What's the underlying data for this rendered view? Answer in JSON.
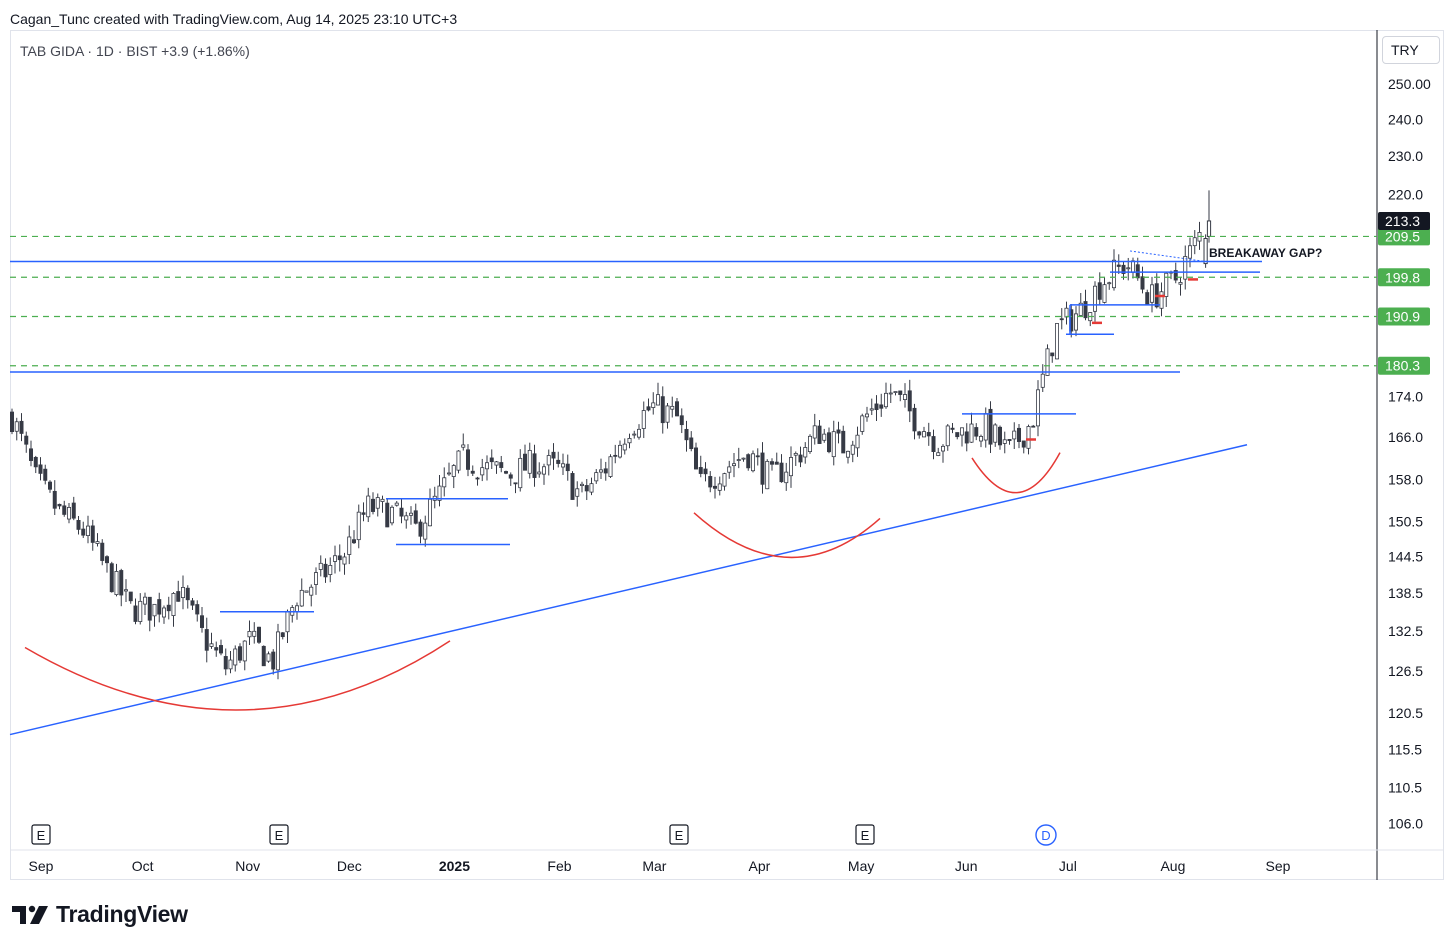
{
  "header": {
    "credit": "Cagan_Tunc created with TradingView.com, Aug 14, 2025 23:10 UTC+3",
    "legend": "TAB GIDA · 1D · BIST  +3.9 (+1.86%)",
    "currency": "TRY"
  },
  "footer": {
    "logo_text": "TradingView"
  },
  "colors": {
    "candle": "#363a45",
    "support_line": "#2962ff",
    "arc": "#e53935",
    "dashed_level": "#4caf50",
    "price_badge": "#131722",
    "level_badge": "#4caf50"
  },
  "chart_data": {
    "type": "candlestick",
    "symbol": "TAB GIDA",
    "interval": "1D",
    "exchange": "BIST",
    "change": "+3.9 (+1.86%)",
    "y_scale": "log",
    "ylim": [
      103,
      265
    ],
    "y_ticks": [
      "250.00",
      "240.0",
      "230.0",
      "220.0",
      "174.0",
      "166.0",
      "158.0",
      "150.5",
      "144.5",
      "138.5",
      "132.5",
      "126.5",
      "120.5",
      "115.5",
      "110.5",
      "106.0"
    ],
    "x_ticks": [
      "Sep",
      "Oct",
      "Nov",
      "Dec",
      "2025",
      "Feb",
      "Mar",
      "Apr",
      "May",
      "Jun",
      "Jul",
      "Aug",
      "Sep"
    ],
    "last_price": "213.3",
    "levels": [
      {
        "value": 209.5,
        "label": "209.5"
      },
      {
        "value": 199.8,
        "label": "199.8"
      },
      {
        "value": 190.9,
        "label": "190.9"
      },
      {
        "value": 180.3,
        "label": "180.3"
      }
    ],
    "annotations": [
      "BREAKAWAY GAP?"
    ],
    "earnings_markers": [
      "E",
      "E",
      "E",
      "E"
    ],
    "dividend_markers": [
      "D"
    ],
    "close_path": [
      [
        "2024-08-27",
        170
      ],
      [
        "2024-09-03",
        158
      ],
      [
        "2024-09-10",
        152
      ],
      [
        "2024-09-17",
        149
      ],
      [
        "2024-09-24",
        142
      ],
      [
        "2024-10-01",
        136
      ],
      [
        "2024-10-08",
        136
      ],
      [
        "2024-10-15",
        139
      ],
      [
        "2024-10-22",
        132
      ],
      [
        "2024-10-29",
        127
      ],
      [
        "2024-11-05",
        131
      ],
      [
        "2024-11-12",
        128
      ],
      [
        "2024-11-19",
        138
      ],
      [
        "2024-11-26",
        141
      ],
      [
        "2024-12-03",
        145
      ],
      [
        "2024-12-10",
        153
      ],
      [
        "2024-12-17",
        152
      ],
      [
        "2024-12-24",
        149
      ],
      [
        "2024-12-31",
        155
      ],
      [
        "2025-01-07",
        162
      ],
      [
        "2025-01-14",
        160
      ],
      [
        "2025-01-21",
        159
      ],
      [
        "2025-01-28",
        161
      ],
      [
        "2025-02-04",
        160
      ],
      [
        "2025-02-11",
        155
      ],
      [
        "2025-02-18",
        160
      ],
      [
        "2025-02-25",
        168
      ],
      [
        "2025-03-04",
        172
      ],
      [
        "2025-03-11",
        170
      ],
      [
        "2025-03-18",
        157
      ],
      [
        "2025-03-25",
        160
      ],
      [
        "2025-04-01",
        163
      ],
      [
        "2025-04-08",
        158
      ],
      [
        "2025-04-15",
        162
      ],
      [
        "2025-04-22",
        167
      ],
      [
        "2025-04-29",
        164
      ],
      [
        "2025-05-06",
        170
      ],
      [
        "2025-05-13",
        175
      ],
      [
        "2025-05-20",
        170
      ],
      [
        "2025-05-27",
        165
      ],
      [
        "2025-06-03",
        167
      ],
      [
        "2025-06-10",
        168
      ],
      [
        "2025-06-17",
        163
      ],
      [
        "2025-06-24",
        169
      ],
      [
        "2025-07-01",
        188
      ],
      [
        "2025-07-08",
        192
      ],
      [
        "2025-07-15",
        199
      ],
      [
        "2025-07-22",
        203
      ],
      [
        "2025-07-29",
        195
      ],
      [
        "2025-08-05",
        199
      ],
      [
        "2025-08-12",
        209
      ],
      [
        "2025-08-14",
        213.3
      ]
    ]
  }
}
